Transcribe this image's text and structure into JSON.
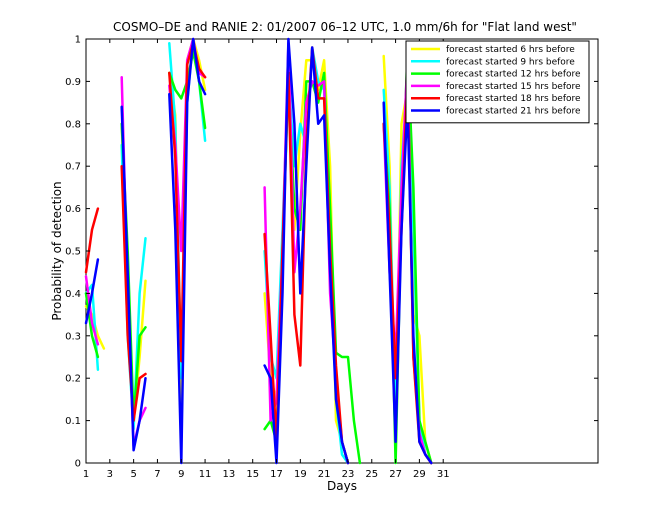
{
  "chart_data": {
    "type": "line",
    "title": "COSMO–DE and RANIE 2: 01/2007 06–12 UTC, 1.0 mm/6h for \"Flat land west\"",
    "xlabel": "Days",
    "ylabel": "Probability of detection",
    "xlim": [
      1,
      44
    ],
    "ylim": [
      0,
      1
    ],
    "xticks": [
      1,
      3,
      5,
      7,
      9,
      11,
      13,
      15,
      17,
      19,
      21,
      23,
      25,
      27,
      29,
      31
    ],
    "yticks": [
      0,
      0.1,
      0.2,
      0.3,
      0.4,
      0.5,
      0.6,
      0.7,
      0.8,
      0.9,
      1
    ],
    "ytick_labels": [
      "0",
      "0.1",
      "0.2",
      "0.3",
      "0.4",
      "0.5",
      "0.6",
      "0.7",
      "0.8",
      "0.9",
      "1"
    ],
    "grid": false,
    "legend_position": "top-right",
    "series": [
      {
        "name": "forecast started 6 hrs before",
        "color": "#ffff00",
        "points": [
          [
            1,
            0.37
          ],
          [
            1.5,
            0.35
          ],
          [
            2,
            0.3
          ],
          [
            2.5,
            0.27
          ],
          null,
          [
            4,
            0.8
          ],
          [
            4.5,
            0.4
          ],
          [
            5,
            0.1
          ],
          [
            5.5,
            0.25
          ],
          [
            6,
            0.43
          ],
          null,
          [
            8,
            0.92
          ],
          [
            8.5,
            0.82
          ],
          [
            9,
            0.05
          ],
          [
            9.5,
            0.95
          ],
          [
            10,
            1.0
          ],
          [
            10.5,
            0.95
          ],
          [
            11,
            0.88
          ],
          null,
          [
            16,
            0.4
          ],
          [
            16.5,
            0.2
          ],
          [
            17,
            0.15
          ],
          [
            17.5,
            0.45
          ],
          [
            18,
            0.95
          ],
          [
            18.5,
            0.55
          ],
          [
            19,
            0.78
          ],
          [
            19.5,
            0.95
          ],
          [
            20,
            0.95
          ],
          [
            20.5,
            0.88
          ],
          [
            21,
            0.95
          ],
          [
            21.5,
            0.7
          ],
          [
            22,
            0.1
          ],
          [
            22.5,
            0.05
          ],
          [
            23,
            0
          ],
          null,
          [
            26,
            0.96
          ],
          [
            26.5,
            0.7
          ],
          [
            27,
            0.05
          ],
          [
            27.5,
            0.8
          ],
          [
            28,
            0.88
          ],
          [
            28.5,
            0.35
          ],
          [
            29,
            0.3
          ],
          [
            29.5,
            0.05
          ],
          [
            30,
            0
          ]
        ]
      },
      {
        "name": "forecast started 9 hrs before",
        "color": "#00ffff",
        "points": [
          [
            1,
            0.4
          ],
          [
            1.5,
            0.42
          ],
          [
            2,
            0.22
          ],
          null,
          [
            4,
            0.75
          ],
          [
            4.5,
            0.3
          ],
          [
            5,
            0.08
          ],
          [
            5.5,
            0.4
          ],
          [
            6,
            0.53
          ],
          null,
          [
            8,
            0.99
          ],
          [
            8.5,
            0.8
          ],
          [
            9,
            0.2
          ],
          [
            9.5,
            0.85
          ],
          [
            10,
            1.0
          ],
          [
            10.5,
            0.9
          ],
          [
            11,
            0.76
          ],
          null,
          [
            16,
            0.5
          ],
          [
            16.5,
            0.25
          ],
          [
            17,
            0.2
          ],
          [
            17.5,
            0.55
          ],
          [
            18,
            0.92
          ],
          [
            18.5,
            0.7
          ],
          [
            19,
            0.8
          ],
          [
            19.5,
            0.75
          ],
          [
            20,
            0.98
          ],
          [
            20.5,
            0.9
          ],
          [
            21,
            0.88
          ],
          [
            21.5,
            0.5
          ],
          [
            22,
            0.15
          ],
          [
            22.5,
            0.02
          ],
          [
            23,
            0
          ],
          null,
          [
            26,
            0.88
          ],
          [
            26.5,
            0.65
          ],
          [
            27,
            0.1
          ],
          [
            27.5,
            0.7
          ],
          [
            28,
            0.9
          ],
          [
            28.5,
            0.55
          ],
          [
            29,
            0.1
          ],
          [
            29.5,
            0.02
          ],
          [
            30,
            0
          ]
        ]
      },
      {
        "name": "forecast started 12 hrs before",
        "color": "#00ff00",
        "points": [
          [
            1,
            0.4
          ],
          [
            1.5,
            0.3
          ],
          [
            2,
            0.25
          ],
          null,
          [
            4,
            0.8
          ],
          [
            4.5,
            0.5
          ],
          [
            5,
            0.1
          ],
          [
            5.5,
            0.3
          ],
          [
            6,
            0.32
          ],
          null,
          [
            8,
            0.92
          ],
          [
            8.5,
            0.88
          ],
          [
            9,
            0.86
          ],
          [
            9.5,
            0.9
          ],
          [
            10,
            0.97
          ],
          [
            10.5,
            0.9
          ],
          [
            11,
            0.79
          ],
          null,
          [
            16,
            0.08
          ],
          [
            16.5,
            0.1
          ],
          [
            17,
            0.05
          ],
          [
            17.5,
            0.5
          ],
          [
            18,
            0.9
          ],
          [
            18.5,
            0.6
          ],
          [
            19,
            0.55
          ],
          [
            19.5,
            0.9
          ],
          [
            20,
            0.9
          ],
          [
            20.5,
            0.85
          ],
          [
            21,
            0.92
          ],
          [
            21.5,
            0.6
          ],
          [
            22,
            0.26
          ],
          [
            22.5,
            0.25
          ],
          [
            23,
            0.25
          ],
          [
            23.5,
            0.1
          ],
          [
            24,
            0
          ],
          null,
          [
            26,
            0.8
          ],
          [
            26.5,
            0.6
          ],
          [
            27,
            0
          ],
          [
            27.5,
            0.6
          ],
          [
            28,
            0.97
          ],
          [
            28.5,
            0.65
          ],
          [
            29,
            0.1
          ],
          [
            29.5,
            0.05
          ],
          [
            30,
            0
          ]
        ]
      },
      {
        "name": "forecast started 15 hrs before",
        "color": "#ff00ff",
        "points": [
          [
            1,
            0.44
          ],
          [
            1.5,
            0.33
          ],
          [
            2,
            0.28
          ],
          null,
          [
            4,
            0.91
          ],
          [
            4.5,
            0.4
          ],
          [
            5,
            0.04
          ],
          [
            5.5,
            0.1
          ],
          [
            6,
            0.13
          ],
          null,
          [
            8,
            0.89
          ],
          [
            8.5,
            0.75
          ],
          [
            9,
            0.5
          ],
          [
            9.5,
            0.95
          ],
          [
            10,
            1.0
          ],
          [
            10.5,
            0.92
          ],
          [
            11,
            0.91
          ],
          null,
          [
            16,
            0.65
          ],
          [
            16.5,
            0.1
          ],
          [
            17,
            0.15
          ],
          [
            17.5,
            0.5
          ],
          [
            18,
            0.99
          ],
          [
            18.5,
            0.45
          ],
          [
            19,
            0.6
          ],
          [
            19.5,
            0.85
          ],
          [
            20,
            0.9
          ],
          [
            20.5,
            0.89
          ],
          [
            21,
            0.9
          ],
          [
            21.5,
            0.4
          ],
          [
            22,
            0.2
          ],
          [
            22.5,
            0.05
          ],
          [
            23,
            0
          ],
          null,
          [
            26,
            0.8
          ],
          [
            26.5,
            0.45
          ],
          [
            27,
            0.25
          ],
          [
            27.5,
            0.65
          ],
          [
            28,
            0.95
          ],
          [
            28.5,
            0.25
          ],
          [
            29,
            0.07
          ],
          [
            29.5,
            0.02
          ],
          [
            30,
            0
          ]
        ]
      },
      {
        "name": "forecast started 18 hrs before",
        "color": "#ff0000",
        "points": [
          [
            1,
            0.45
          ],
          [
            1.5,
            0.55
          ],
          [
            2,
            0.6
          ],
          null,
          [
            4,
            0.7
          ],
          [
            4.5,
            0.3
          ],
          [
            5,
            0.1
          ],
          [
            5.5,
            0.2
          ],
          [
            6,
            0.21
          ],
          null,
          [
            8,
            0.92
          ],
          [
            8.5,
            0.72
          ],
          [
            9,
            0.24
          ],
          [
            9.5,
            0.94
          ],
          [
            10,
            0.99
          ],
          [
            10.5,
            0.93
          ],
          [
            11,
            0.91
          ],
          null,
          [
            16,
            0.54
          ],
          [
            16.5,
            0.3
          ],
          [
            17,
            0.05
          ],
          [
            17.5,
            0.5
          ],
          [
            18,
            0.92
          ],
          [
            18.5,
            0.35
          ],
          [
            19,
            0.23
          ],
          [
            19.5,
            0.75
          ],
          [
            20,
            0.98
          ],
          [
            20.5,
            0.86
          ],
          [
            21,
            0.86
          ],
          [
            21.5,
            0.5
          ],
          [
            22,
            0.23
          ],
          [
            22.5,
            0.05
          ],
          [
            23,
            0
          ],
          null,
          [
            26,
            0.8
          ],
          [
            26.5,
            0.55
          ],
          [
            27,
            0.2
          ],
          [
            27.5,
            0.55
          ],
          [
            28,
            0.91
          ],
          [
            28.5,
            0.25
          ],
          [
            29,
            0.05
          ],
          [
            29.5,
            0.02
          ],
          [
            30,
            0
          ]
        ]
      },
      {
        "name": "forecast started 21 hrs before",
        "color": "#0000ff",
        "points": [
          [
            1,
            0.33
          ],
          [
            1.5,
            0.4
          ],
          [
            2,
            0.48
          ],
          null,
          [
            4,
            0.84
          ],
          [
            4.5,
            0.45
          ],
          [
            5,
            0.03
          ],
          [
            5.5,
            0.1
          ],
          [
            6,
            0.2
          ],
          null,
          [
            8,
            0.87
          ],
          [
            8.5,
            0.55
          ],
          [
            9,
            0
          ],
          [
            9.5,
            0.85
          ],
          [
            10,
            1.0
          ],
          [
            10.5,
            0.9
          ],
          [
            11,
            0.87
          ],
          null,
          [
            16,
            0.23
          ],
          [
            16.5,
            0.2
          ],
          [
            17,
            0
          ],
          [
            17.5,
            0.4
          ],
          [
            18,
            1.0
          ],
          [
            18.5,
            0.8
          ],
          [
            19,
            0.4
          ],
          [
            19.5,
            0.7
          ],
          [
            20,
            0.98
          ],
          [
            20.5,
            0.8
          ],
          [
            21,
            0.82
          ],
          [
            21.5,
            0.45
          ],
          [
            22,
            0.15
          ],
          [
            22.5,
            0.05
          ],
          [
            23,
            0
          ],
          null,
          [
            26,
            0.85
          ],
          [
            26.5,
            0.45
          ],
          [
            27,
            0.05
          ],
          [
            27.5,
            0.55
          ],
          [
            28,
            0.85
          ],
          [
            28.5,
            0.3
          ],
          [
            29,
            0.05
          ],
          [
            29.5,
            0.02
          ],
          [
            30,
            0
          ]
        ]
      }
    ]
  }
}
